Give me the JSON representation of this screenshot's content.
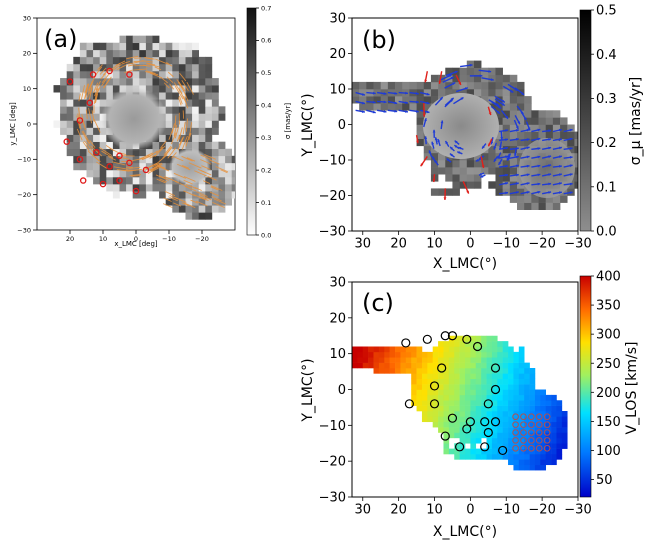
{
  "chart_data": [
    {
      "type": "heatmap",
      "panel": "(a)",
      "xlabel": "x_LMC [deg]",
      "ylabel": "y_LMC [deg]",
      "xlim": [
        30,
        -30
      ],
      "ylim": [
        -30,
        30
      ],
      "xticks": [
        "20",
        "10",
        "0",
        "−10",
        "−20"
      ],
      "xtick_values": [
        20,
        10,
        0,
        -10,
        -20
      ],
      "yticks": [
        "30",
        "20",
        "10",
        "0",
        "−10",
        "−20",
        "−30"
      ],
      "ytick_values": [
        30,
        20,
        10,
        0,
        -10,
        -20,
        -30
      ],
      "colorbar": {
        "label": "σ [mas/yr]",
        "range": [
          0.0,
          0.7
        ],
        "ticks": [
          "0.0",
          "0.1",
          "0.2",
          "0.3",
          "0.4",
          "0.5",
          "0.6",
          "0.7"
        ],
        "tick_values": [
          0,
          0.1,
          0.2,
          0.3,
          0.4,
          0.5,
          0.6,
          0.7
        ]
      },
      "regions": [
        {
          "name": "LMC",
          "x": 0,
          "y": 3,
          "r": 13
        },
        {
          "name": "SMC",
          "x": -18,
          "y": -16,
          "r": 8
        }
      ],
      "red_circles": [
        {
          "x": 20,
          "y": 12
        },
        {
          "x": 13,
          "y": 14
        },
        {
          "x": 8,
          "y": 15
        },
        {
          "x": 2,
          "y": 14
        },
        {
          "x": 14,
          "y": 6
        },
        {
          "x": 17,
          "y": 1
        },
        {
          "x": 21,
          "y": -5
        },
        {
          "x": 17,
          "y": -10
        },
        {
          "x": 12,
          "y": -8
        },
        {
          "x": 8,
          "y": -12
        },
        {
          "x": 5,
          "y": -9
        },
        {
          "x": 2,
          "y": -11
        },
        {
          "x": 5,
          "y": -16
        },
        {
          "x": 10,
          "y": -17
        },
        {
          "x": 16,
          "y": -16
        },
        {
          "x": -3,
          "y": -13
        },
        {
          "x": 0,
          "y": -19
        }
      ]
    },
    {
      "type": "heatmap",
      "panel": "(b)",
      "xlabel": "X_LMC(°)",
      "ylabel": "Y_LMC(°)",
      "xlim": [
        33,
        -30
      ],
      "ylim": [
        -30,
        30
      ],
      "xticks": [
        "30",
        "20",
        "10",
        "0",
        "−10",
        "−20",
        "−30"
      ],
      "xtick_values": [
        30,
        20,
        10,
        0,
        -10,
        -20,
        -30
      ],
      "yticks": [
        "30",
        "20",
        "10",
        "0",
        "−10",
        "−20",
        "−30"
      ],
      "ytick_values": [
        30,
        20,
        10,
        0,
        -10,
        -20,
        -30
      ],
      "colorbar": {
        "label": "σ_μ [mas/yr]",
        "range": [
          0.0,
          0.5
        ],
        "ticks": [
          "0.0",
          "0.1",
          "0.2",
          "0.3",
          "0.4",
          "0.5"
        ],
        "tick_values": [
          0,
          0.1,
          0.2,
          0.3,
          0.4,
          0.5
        ]
      },
      "vector_fields": [
        {
          "name": "blue proper-motion arrows",
          "color": "#1f3bd6"
        },
        {
          "name": "red proper-motion arrows",
          "color": "#e0201b"
        }
      ]
    },
    {
      "type": "heatmap",
      "panel": "(c)",
      "xlabel": "X_LMC(°)",
      "ylabel": "Y_LMC(°)",
      "xlim": [
        33,
        -30
      ],
      "ylim": [
        -30,
        30
      ],
      "xticks": [
        "30",
        "20",
        "10",
        "0",
        "−10",
        "−20",
        "−30"
      ],
      "xtick_values": [
        30,
        20,
        10,
        0,
        -10,
        -20,
        -30
      ],
      "yticks": [
        "30",
        "20",
        "10",
        "0",
        "−10",
        "−20",
        "−30"
      ],
      "ytick_values": [
        30,
        20,
        10,
        0,
        -10,
        -20,
        -30
      ],
      "colorbar": {
        "label": "V_LOS [km/s]",
        "range": [
          20,
          400
        ],
        "ticks": [
          "50",
          "100",
          "150",
          "200",
          "250",
          "300",
          "350",
          "400"
        ],
        "tick_values": [
          50,
          100,
          150,
          200,
          250,
          300,
          350,
          400
        ]
      },
      "black_circles": [
        {
          "x": 18,
          "y": 13
        },
        {
          "x": 12,
          "y": 14
        },
        {
          "x": 7,
          "y": 15
        },
        {
          "x": 5,
          "y": 15
        },
        {
          "x": 1,
          "y": 14
        },
        {
          "x": -2,
          "y": 12
        },
        {
          "x": 10,
          "y": 1
        },
        {
          "x": 8,
          "y": 6
        },
        {
          "x": -7,
          "y": 6
        },
        {
          "x": 10,
          "y": -4
        },
        {
          "x": 5,
          "y": -8
        },
        {
          "x": 17,
          "y": -4
        },
        {
          "x": -5,
          "y": -4
        },
        {
          "x": -7,
          "y": 0
        },
        {
          "x": 1,
          "y": -11
        },
        {
          "x": 0,
          "y": -9
        },
        {
          "x": -4,
          "y": -9
        },
        {
          "x": -7,
          "y": -9
        },
        {
          "x": -5,
          "y": -12
        },
        {
          "x": 7,
          "y": -13
        },
        {
          "x": 3,
          "y": -16
        },
        {
          "x": -4,
          "y": -16
        },
        {
          "x": -9,
          "y": -17
        }
      ],
      "smc_circle_grid": {
        "x_center": -17,
        "y_center": -12,
        "rows": 5,
        "cols": 5,
        "spacing": 2.2
      }
    }
  ]
}
